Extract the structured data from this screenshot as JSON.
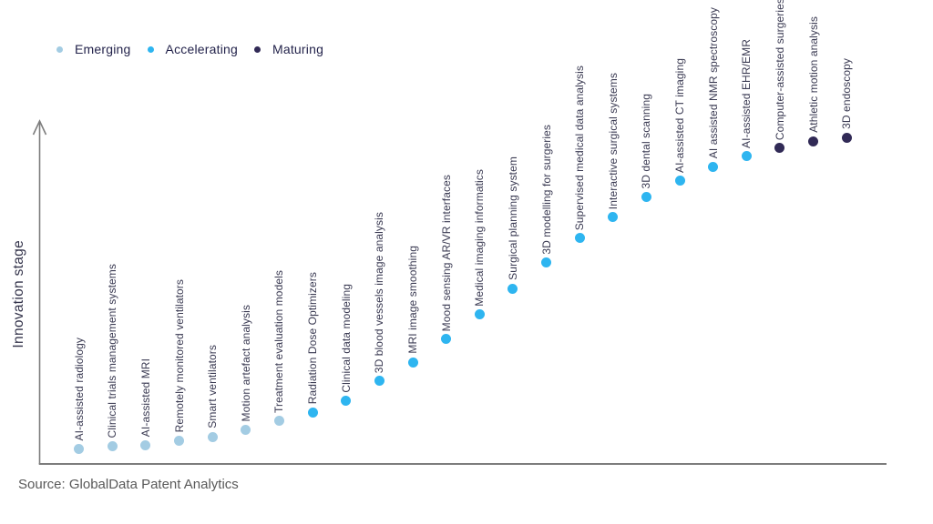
{
  "legend": {
    "items": [
      {
        "label": "Emerging",
        "color": "#a3cce3"
      },
      {
        "label": "Accelerating",
        "color": "#2eb5f0"
      },
      {
        "label": "Maturing",
        "color": "#312a56"
      }
    ]
  },
  "chart_data": {
    "type": "scatter",
    "title": "",
    "xlabel": "",
    "ylabel": "Innovation stage",
    "y_axis": {
      "ticks": [],
      "range_note": "unlabeled qualitative axis with upward arrow"
    },
    "x_axis": {
      "ticks": [],
      "range_note": "unlabeled; technologies ordered by innovation stage"
    },
    "grid": false,
    "legend_position": "top-left",
    "points": [
      {
        "label": "AI-assisted radiology",
        "stage": "Emerging",
        "rank": 1,
        "stage_score": 4.7
      },
      {
        "label": "Clinical trials management systems",
        "stage": "Emerging",
        "rank": 2,
        "stage_score": 5.3
      },
      {
        "label": "AI-assisted MRI",
        "stage": "Emerging",
        "rank": 3,
        "stage_score": 5.8
      },
      {
        "label": "Remotely monitored ventilators",
        "stage": "Emerging",
        "rank": 4,
        "stage_score": 7.2
      },
      {
        "label": "Smart ventilators",
        "stage": "Emerging",
        "rank": 5,
        "stage_score": 8.3
      },
      {
        "label": "Motion artefact analysis",
        "stage": "Emerging",
        "rank": 6,
        "stage_score": 10.3
      },
      {
        "label": "Treatment evaluation models",
        "stage": "Emerging",
        "rank": 7,
        "stage_score": 13.1
      },
      {
        "label": "Radiation Dose Optimizers",
        "stage": "Accelerating",
        "rank": 8,
        "stage_score": 15.8
      },
      {
        "label": "Clinical data modeling",
        "stage": "Accelerating",
        "rank": 9,
        "stage_score": 19.4
      },
      {
        "label": "3D blood vessels image analysis",
        "stage": "Accelerating",
        "rank": 10,
        "stage_score": 25.3
      },
      {
        "label": "MRI image smoothing",
        "stage": "Accelerating",
        "rank": 11,
        "stage_score": 31.1
      },
      {
        "label": "Mood sensing AR/VR interfaces",
        "stage": "Accelerating",
        "rank": 12,
        "stage_score": 38.1
      },
      {
        "label": "Medical imaging informatics",
        "stage": "Accelerating",
        "rank": 13,
        "stage_score": 45.6
      },
      {
        "label": "Surgical planning system",
        "stage": "Accelerating",
        "rank": 14,
        "stage_score": 53.6
      },
      {
        "label": "3D modelling for surgeries",
        "stage": "Accelerating",
        "rank": 15,
        "stage_score": 61.4
      },
      {
        "label": "Supervised medical data analysis",
        "stage": "Accelerating",
        "rank": 16,
        "stage_score": 68.9
      },
      {
        "label": "Interactive surgical systems",
        "stage": "Accelerating",
        "rank": 17,
        "stage_score": 75.3
      },
      {
        "label": "3D dental scanning",
        "stage": "Accelerating",
        "rank": 18,
        "stage_score": 81.4
      },
      {
        "label": "AI-assisted CT imaging",
        "stage": "Accelerating",
        "rank": 19,
        "stage_score": 86.4
      },
      {
        "label": "AI assisted NMR spectroscopy",
        "stage": "Accelerating",
        "rank": 20,
        "stage_score": 90.8
      },
      {
        "label": "AI-assisted EHR/EMR",
        "stage": "Accelerating",
        "rank": 21,
        "stage_score": 93.9
      },
      {
        "label": "Computer-assisted surgeries",
        "stage": "Maturing",
        "rank": 22,
        "stage_score": 96.4
      },
      {
        "label": "Athletic motion analysis",
        "stage": "Maturing",
        "rank": 23,
        "stage_score": 98.6
      },
      {
        "label": "3D endoscopy",
        "stage": "Maturing",
        "rank": 24,
        "stage_score": 99.7
      }
    ]
  },
  "source": "Source: GlobalData Patent Analytics",
  "colors": {
    "axis": "#7d7d7d",
    "point_label_text": "#3a3a52",
    "legend_text": "#23234b",
    "source_text": "#595959",
    "background": "#ffffff"
  }
}
